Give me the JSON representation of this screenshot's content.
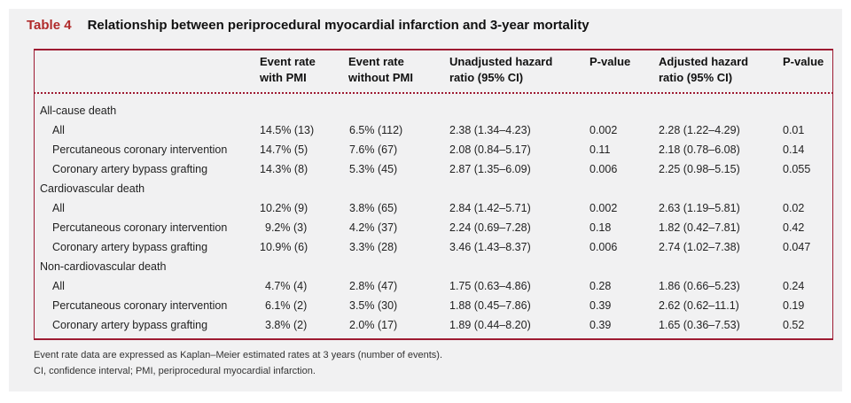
{
  "table": {
    "label": "Table 4",
    "title": "Relationship between periprocedural myocardial infarction and 3-year mortality",
    "headers": [
      {
        "line1": "Event rate",
        "line2": "with PMI"
      },
      {
        "line1": "Event rate",
        "line2": "without PMI"
      },
      {
        "line1": "Unadjusted hazard",
        "line2": "ratio (95% CI)"
      },
      {
        "line1": "P-value",
        "line2": ""
      },
      {
        "line1": "Adjusted hazard",
        "line2": "ratio (95% CI)"
      },
      {
        "line1": "P-value",
        "line2": ""
      }
    ],
    "groups": [
      {
        "label": "All-cause death",
        "rows": [
          {
            "name": "All",
            "cells": [
              "14.5% (13)",
              "6.5% (112)",
              "2.38 (1.34–4.23)",
              "0.002",
              "2.28 (1.22–4.29)",
              "0.01"
            ]
          },
          {
            "name": "Percutaneous coronary intervention",
            "cells": [
              "14.7% (5)",
              "7.6% (67)",
              "2.08 (0.84–5.17)",
              "0.11",
              "2.18 (0.78–6.08)",
              "0.14"
            ]
          },
          {
            "name": "Coronary artery bypass grafting",
            "cells": [
              "14.3% (8)",
              "5.3% (45)",
              "2.87 (1.35–6.09)",
              "0.006",
              "2.25 (0.98–5.15)",
              "0.055"
            ]
          }
        ]
      },
      {
        "label": "Cardiovascular death",
        "rows": [
          {
            "name": "All",
            "cells": [
              "10.2% (9)",
              "3.8% (65)",
              "2.84 (1.42–5.71)",
              "0.002",
              "2.63 (1.19–5.81)",
              "0.02"
            ]
          },
          {
            "name": "Percutaneous coronary intervention",
            "cells": [
              "9.2% (3)",
              "4.2% (37)",
              "2.24 (0.69–7.28)",
              "0.18",
              "1.82 (0.42–7.81)",
              "0.42"
            ]
          },
          {
            "name": "Coronary artery bypass grafting",
            "cells": [
              "10.9% (6)",
              "3.3% (28)",
              "3.46 (1.43–8.37)",
              "0.006",
              "2.74 (1.02–7.38)",
              "0.047"
            ]
          }
        ]
      },
      {
        "label": "Non-cardiovascular death",
        "rows": [
          {
            "name": "All",
            "cells": [
              "4.7% (4)",
              "2.8% (47)",
              "1.75 (0.63–4.86)",
              "0.28",
              "1.86 (0.66–5.23)",
              "0.24"
            ]
          },
          {
            "name": "Percutaneous coronary intervention",
            "cells": [
              "6.1% (2)",
              "3.5% (30)",
              "1.88 (0.45–7.86)",
              "0.39",
              "2.62 (0.62–11.1)",
              "0.19"
            ]
          },
          {
            "name": "Coronary artery bypass grafting",
            "cells": [
              "3.8% (2)",
              "2.0% (17)",
              "1.89 (0.44–8.20)",
              "0.39",
              "1.65 (0.36–7.53)",
              "0.52"
            ]
          }
        ]
      }
    ],
    "footnotes": [
      "Event rate data are expressed as Kaplan–Meier estimated rates at 3 years (number of events).",
      "CI, confidence interval; PMI, periprocedural myocardial infarction."
    ]
  }
}
